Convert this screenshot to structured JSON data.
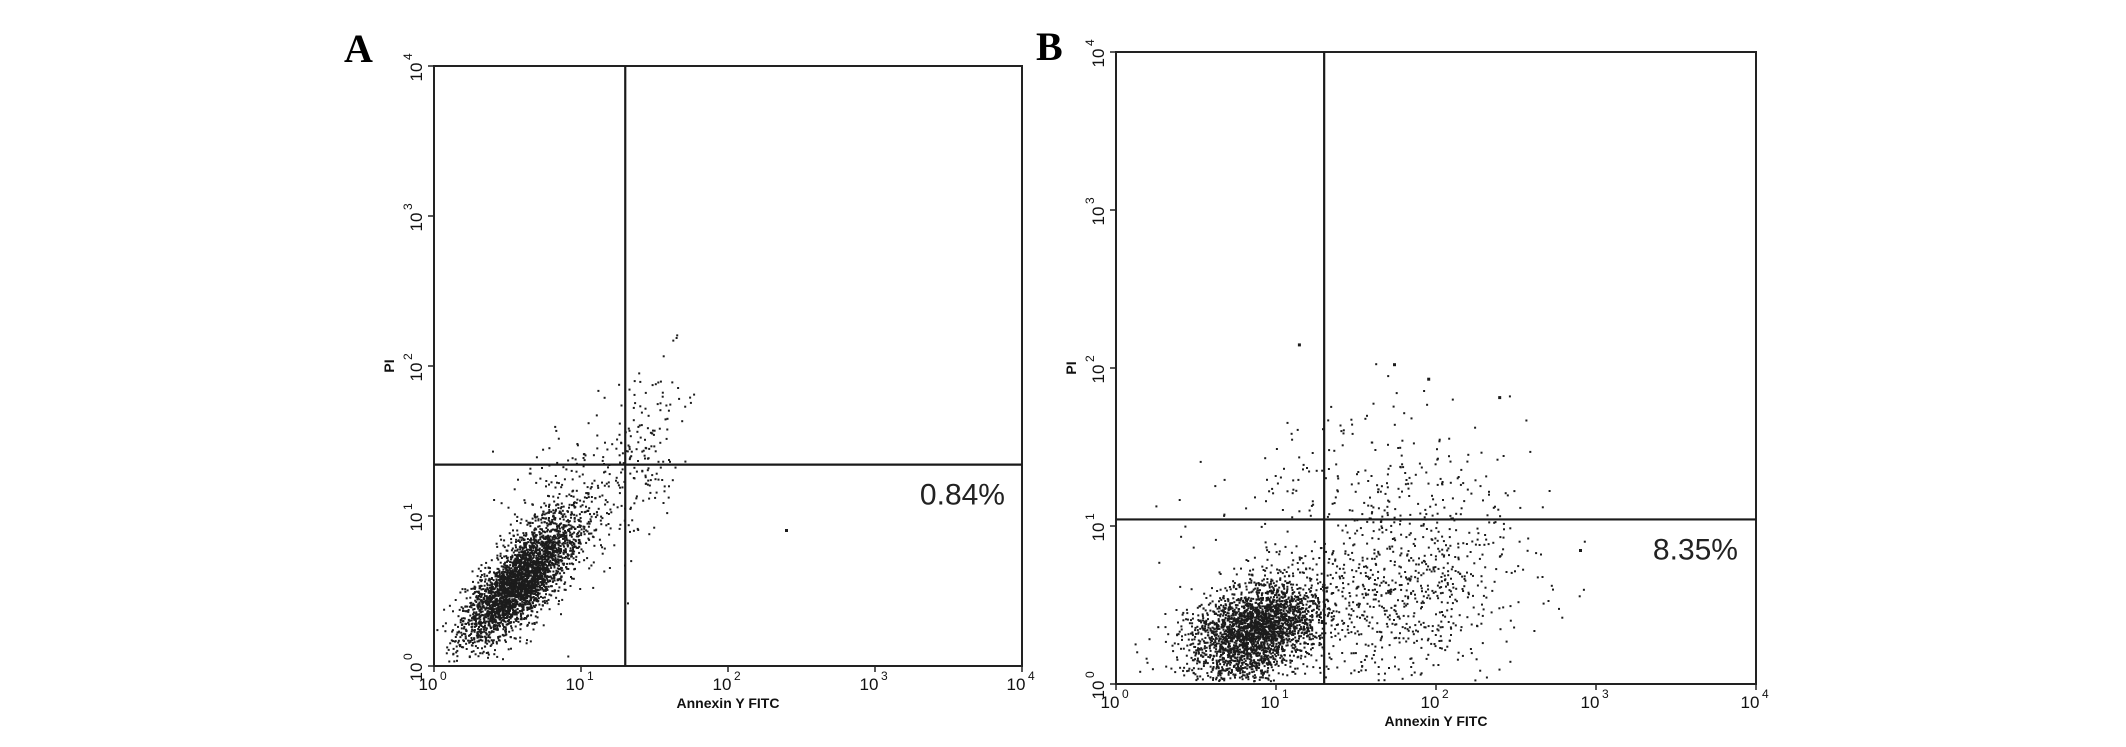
{
  "chart_data": [
    {
      "type": "scatter",
      "panel": "A",
      "xlabel": "Annexin Y FITC",
      "ylabel": "PI",
      "x_scale": "log",
      "y_scale": "log",
      "xlim": [
        1,
        10000
      ],
      "ylim": [
        1,
        10000
      ],
      "x_ticks": [
        {
          "base": "10",
          "exp": "0"
        },
        {
          "base": "10",
          "exp": "1"
        },
        {
          "base": "10",
          "exp": "2"
        },
        {
          "base": "10",
          "exp": "3"
        },
        {
          "base": "10",
          "exp": "4"
        }
      ],
      "y_ticks": [
        {
          "base": "10",
          "exp": "0"
        },
        {
          "base": "10",
          "exp": "1"
        },
        {
          "base": "10",
          "exp": "2"
        },
        {
          "base": "10",
          "exp": "3"
        },
        {
          "base": "10",
          "exp": "4"
        }
      ],
      "gate": {
        "x": 20,
        "y": 22
      },
      "annotation": "0.84%",
      "population": {
        "events": 3600,
        "clusters": [
          {
            "weight": 0.86,
            "center": [
              3.8,
              3.6
            ],
            "spread_log10": [
              0.19,
              0.2
            ],
            "correlation": 0.75
          },
          {
            "weight": 0.1,
            "center": [
              8,
              10
            ],
            "spread_log10": [
              0.25,
              0.28
            ],
            "correlation": 0.5
          },
          {
            "weight": 0.04,
            "center": [
              28,
              25
            ],
            "spread_log10": [
              0.15,
              0.3
            ],
            "correlation": 0.3
          }
        ],
        "extra_points": [
          [
            250,
            8
          ]
        ]
      },
      "grid": false,
      "legend": "none"
    },
    {
      "type": "scatter",
      "panel": "B",
      "xlabel": "Annexin Y FITC",
      "ylabel": "PI",
      "x_scale": "log",
      "y_scale": "log",
      "xlim": [
        1,
        10000
      ],
      "ylim": [
        1,
        10000
      ],
      "x_ticks": [
        {
          "base": "10",
          "exp": "0"
        },
        {
          "base": "10",
          "exp": "1"
        },
        {
          "base": "10",
          "exp": "2"
        },
        {
          "base": "10",
          "exp": "3"
        },
        {
          "base": "10",
          "exp": "4"
        }
      ],
      "y_ticks": [
        {
          "base": "10",
          "exp": "0"
        },
        {
          "base": "10",
          "exp": "1"
        },
        {
          "base": "10",
          "exp": "2"
        },
        {
          "base": "10",
          "exp": "3"
        },
        {
          "base": "10",
          "exp": "4"
        }
      ],
      "gate": {
        "x": 20,
        "y": 11
      },
      "annotation": "8.35%",
      "population": {
        "events": 3800,
        "clusters": [
          {
            "weight": 0.74,
            "center": [
              7.5,
              2.2
            ],
            "spread_log10": [
              0.2,
              0.16
            ],
            "correlation": 0.35
          },
          {
            "weight": 0.18,
            "center": [
              60,
              3.5
            ],
            "spread_log10": [
              0.38,
              0.28
            ],
            "correlation": 0.2
          },
          {
            "weight": 0.08,
            "center": [
              40,
              14
            ],
            "spread_log10": [
              0.45,
              0.32
            ],
            "correlation": 0.1
          }
        ],
        "extra_points": [
          [
            14,
            140
          ],
          [
            55,
            105
          ],
          [
            90,
            85
          ],
          [
            250,
            65
          ],
          [
            800,
            7
          ]
        ]
      },
      "grid": false,
      "legend": "none"
    }
  ]
}
